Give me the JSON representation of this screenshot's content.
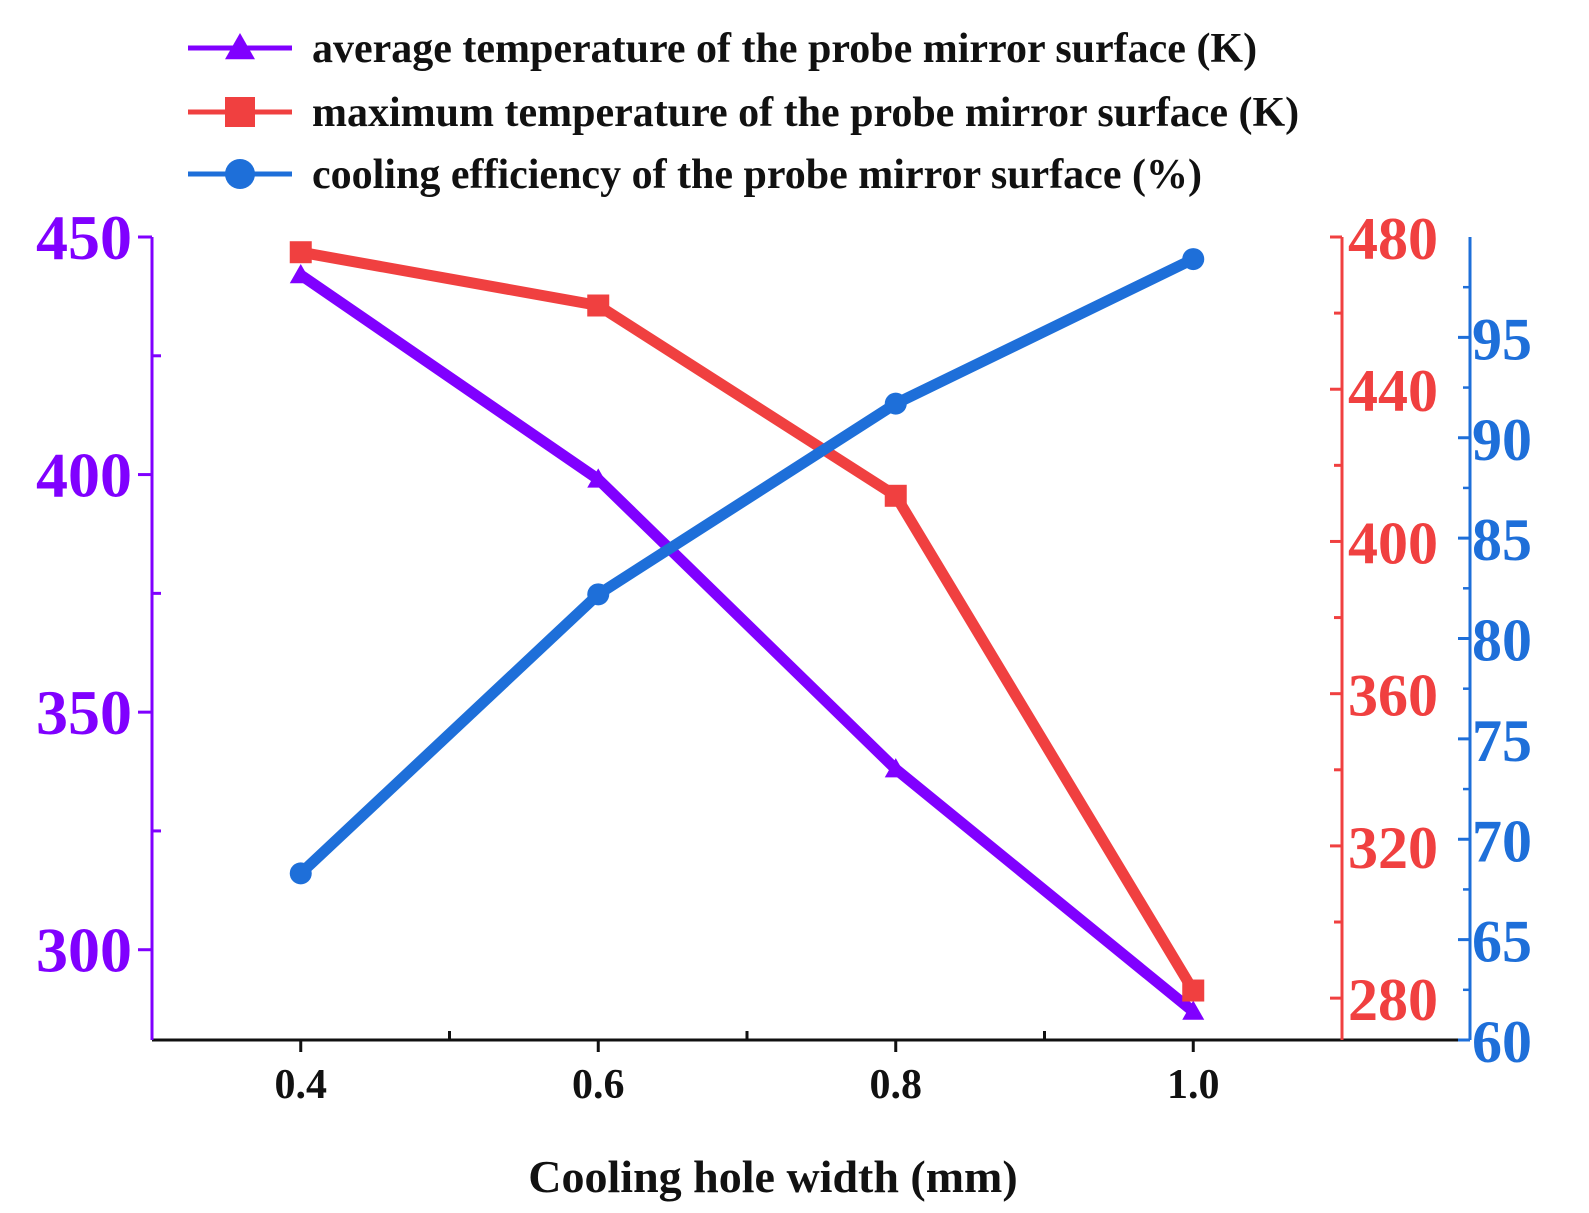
{
  "chart_data": {
    "type": "line",
    "title": "",
    "xlabel": "Cooling hole width (mm)",
    "x": [
      0.4,
      0.6,
      0.8,
      1.0
    ],
    "x_ticks": [
      "0.4",
      "0.6",
      "0.8",
      "1.0"
    ],
    "xlim": [
      0.3,
      1.1
    ],
    "series": [
      {
        "name": "average temperature of the probe mirror surface (K)",
        "axis": "left",
        "marker": "triangle",
        "color": "#8000FF",
        "values": [
          442,
          399,
          338,
          287
        ]
      },
      {
        "name": "maximum temperature of the probe mirror surface (K)",
        "axis": "right1",
        "marker": "square",
        "color": "#F04040",
        "values": [
          476,
          462,
          412,
          282
        ]
      },
      {
        "name": "cooling efficiency of the probe mirror surface (%)",
        "axis": "right2",
        "marker": "circle",
        "color": "#1E6FD9",
        "values": [
          68.3,
          82.2,
          91.7,
          98.9
        ]
      }
    ],
    "y_axes": {
      "left": {
        "ylim": [
          281,
          450
        ],
        "ticks": [
          300,
          350,
          400,
          450
        ],
        "color": "#8000FF"
      },
      "right1": {
        "ylim": [
          269,
          480
        ],
        "ticks": [
          280,
          320,
          360,
          400,
          440,
          480
        ],
        "color": "#F04040"
      },
      "right2": {
        "ylim": [
          60,
          100
        ],
        "ticks": [
          60,
          65,
          70,
          75,
          80,
          85,
          90,
          95
        ],
        "color": "#1E6FD9"
      }
    },
    "legend": "top",
    "grid": false
  }
}
